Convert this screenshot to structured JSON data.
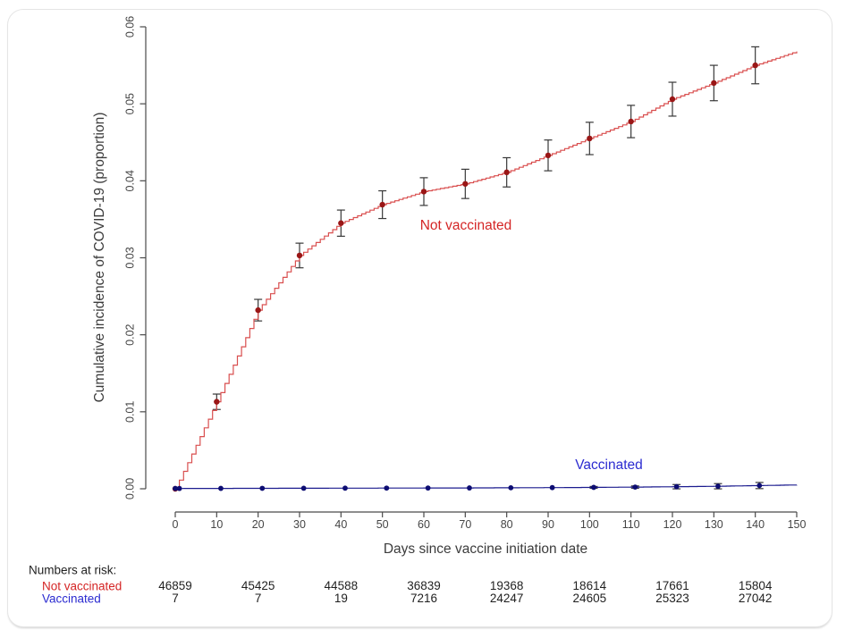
{
  "chart_data": {
    "type": "line",
    "title": "",
    "xlabel": "Days since vaccine initiation date",
    "ylabel": "Cumulative incidence of COVID-19 (proportion)",
    "xlim": [
      0,
      150
    ],
    "ylim": [
      0,
      0.06
    ],
    "x_ticks": [
      0,
      10,
      20,
      30,
      40,
      50,
      60,
      70,
      80,
      90,
      100,
      110,
      120,
      130,
      140,
      150
    ],
    "y_ticks": [
      "0.00",
      "0.01",
      "0.02",
      "0.03",
      "0.04",
      "0.05",
      "0.06"
    ],
    "grid": "off",
    "legend_position": "inline-annotations",
    "series": [
      {
        "name": "Not vaccinated",
        "style": "step",
        "line_color": "#d94f4f",
        "marker_color": "#9a1616",
        "label_color": "#d42525",
        "x": [
          0,
          10,
          20,
          30,
          40,
          50,
          60,
          70,
          80,
          90,
          100,
          110,
          120,
          130,
          140,
          150
        ],
        "y": [
          0,
          0.0113,
          0.0232,
          0.0303,
          0.0345,
          0.0369,
          0.0386,
          0.0396,
          0.0411,
          0.0433,
          0.0455,
          0.0477,
          0.0506,
          0.0527,
          0.055,
          0.0568
        ],
        "err": [
          null,
          0.001,
          0.0014,
          0.0016,
          0.0017,
          0.0018,
          0.0018,
          0.0019,
          0.0019,
          0.002,
          0.0021,
          0.0021,
          0.0022,
          0.0023,
          0.0024,
          null
        ],
        "marker_at_last": false
      },
      {
        "name": "Vaccinated",
        "style": "step",
        "line_color": "#1c1c8f",
        "marker_color": "#0d0d72",
        "label_color": "#2b2bd0",
        "x": [
          0,
          1,
          11,
          21,
          31,
          41,
          51,
          61,
          71,
          81,
          91,
          101,
          111,
          121,
          131,
          141,
          150
        ],
        "y": [
          4e-05,
          4e-05,
          5e-05,
          6e-05,
          7e-05,
          8e-05,
          9e-05,
          0.0001,
          0.00011,
          0.00013,
          0.00015,
          0.00018,
          0.00022,
          0.00027,
          0.00033,
          0.00042,
          0.0005
        ],
        "err": [
          null,
          null,
          null,
          null,
          null,
          null,
          null,
          null,
          null,
          null,
          null,
          0.00012,
          0.00015,
          0.00028,
          0.00034,
          0.0004,
          null
        ],
        "marker_at_last": false
      }
    ],
    "error_bar_color": "#383838"
  },
  "risk_table": {
    "title": "Numbers at risk:",
    "columns_days": [
      0,
      20,
      40,
      60,
      80,
      100,
      120,
      140
    ],
    "rows": [
      {
        "label": "Not vaccinated",
        "color": "#d42525",
        "values": [
          "46859",
          "45425",
          "44588",
          "36839",
          "19368",
          "18614",
          "17661",
          "15804"
        ]
      },
      {
        "label": "Vaccinated",
        "color": "#2b2bd0",
        "values": [
          "7",
          "7",
          "19",
          "7216",
          "24247",
          "24605",
          "25323",
          "27042"
        ]
      }
    ]
  }
}
